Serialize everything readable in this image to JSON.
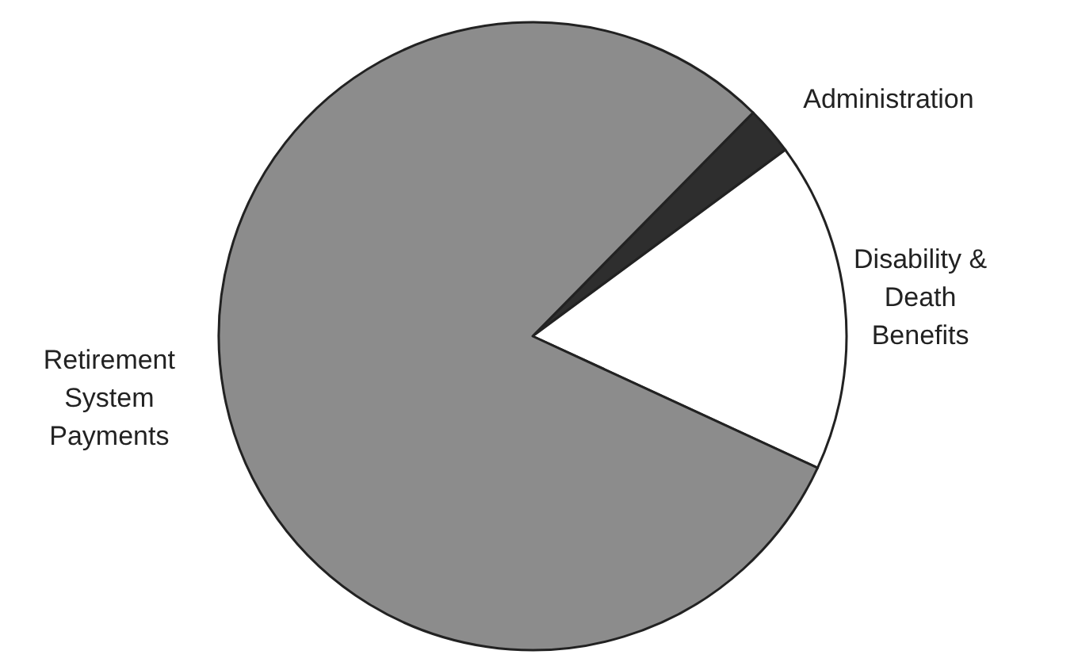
{
  "chart_data": {
    "type": "pie",
    "categories": [
      "Administration",
      "Disability & Death Benefits",
      "Retirement System Payments"
    ],
    "values": [
      2.5,
      17,
      80.5
    ],
    "colors": [
      "#2e2e2e",
      "#ffffff",
      "#8c8c8c"
    ]
  }
}
